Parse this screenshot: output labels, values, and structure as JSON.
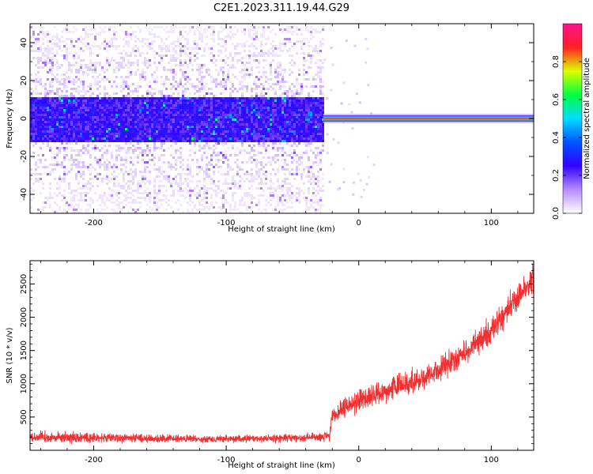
{
  "title": "C2E1.2023.311.19.44.G29",
  "chart_data": [
    {
      "type": "heatmap",
      "xlabel": "Height of straight line (km)",
      "ylabel": "Frequency (Hz)",
      "xlim": [
        -248,
        132
      ],
      "ylim": [
        -50,
        50
      ],
      "xticks": [
        -200,
        -100,
        0,
        100
      ],
      "yticks": [
        -40,
        -20,
        0,
        20,
        40
      ],
      "colorbar": {
        "label": "Normalized spectral amplitude",
        "range": [
          0.0,
          1.0
        ],
        "ticks": [
          0.0,
          0.2,
          0.4,
          0.6,
          0.8
        ],
        "colormap": [
          "#ffffff",
          "#b58cff",
          "#3300ff",
          "#0055ff",
          "#00ddff",
          "#00ff40",
          "#ddff00",
          "#ff2020",
          "#ff1090"
        ]
      },
      "features": {
        "noise_region_x": [
          -248,
          -27
        ],
        "noise_core_half_width_hz": 12,
        "noise_full_half_width_hz": 50,
        "signal_line_x": [
          -27,
          132
        ],
        "signal_frequency_hz": 0,
        "signal_amplitude": 0.85
      }
    },
    {
      "type": "line",
      "xlabel": "Height of straight line (km)",
      "ylabel": "SNR (10 * v/v)",
      "xlim": [
        -248,
        132
      ],
      "ylim": [
        0,
        2850
      ],
      "xticks": [
        -200,
        -100,
        0,
        100
      ],
      "yticks": [
        500,
        1000,
        1500,
        2000,
        2500
      ],
      "line_color": "#f03030",
      "series": [
        {
          "knots_x": [
            -248,
            -200,
            -150,
            -100,
            -50,
            -22,
            -20,
            0,
            50,
            80,
            100,
            120,
            132
          ],
          "knots_y": [
            200,
            190,
            175,
            170,
            185,
            210,
            500,
            750,
            1100,
            1450,
            1800,
            2300,
            2550
          ],
          "spread_y": [
            110,
            95,
            75,
            70,
            80,
            95,
            190,
            210,
            230,
            250,
            260,
            280,
            290
          ]
        }
      ]
    }
  ]
}
